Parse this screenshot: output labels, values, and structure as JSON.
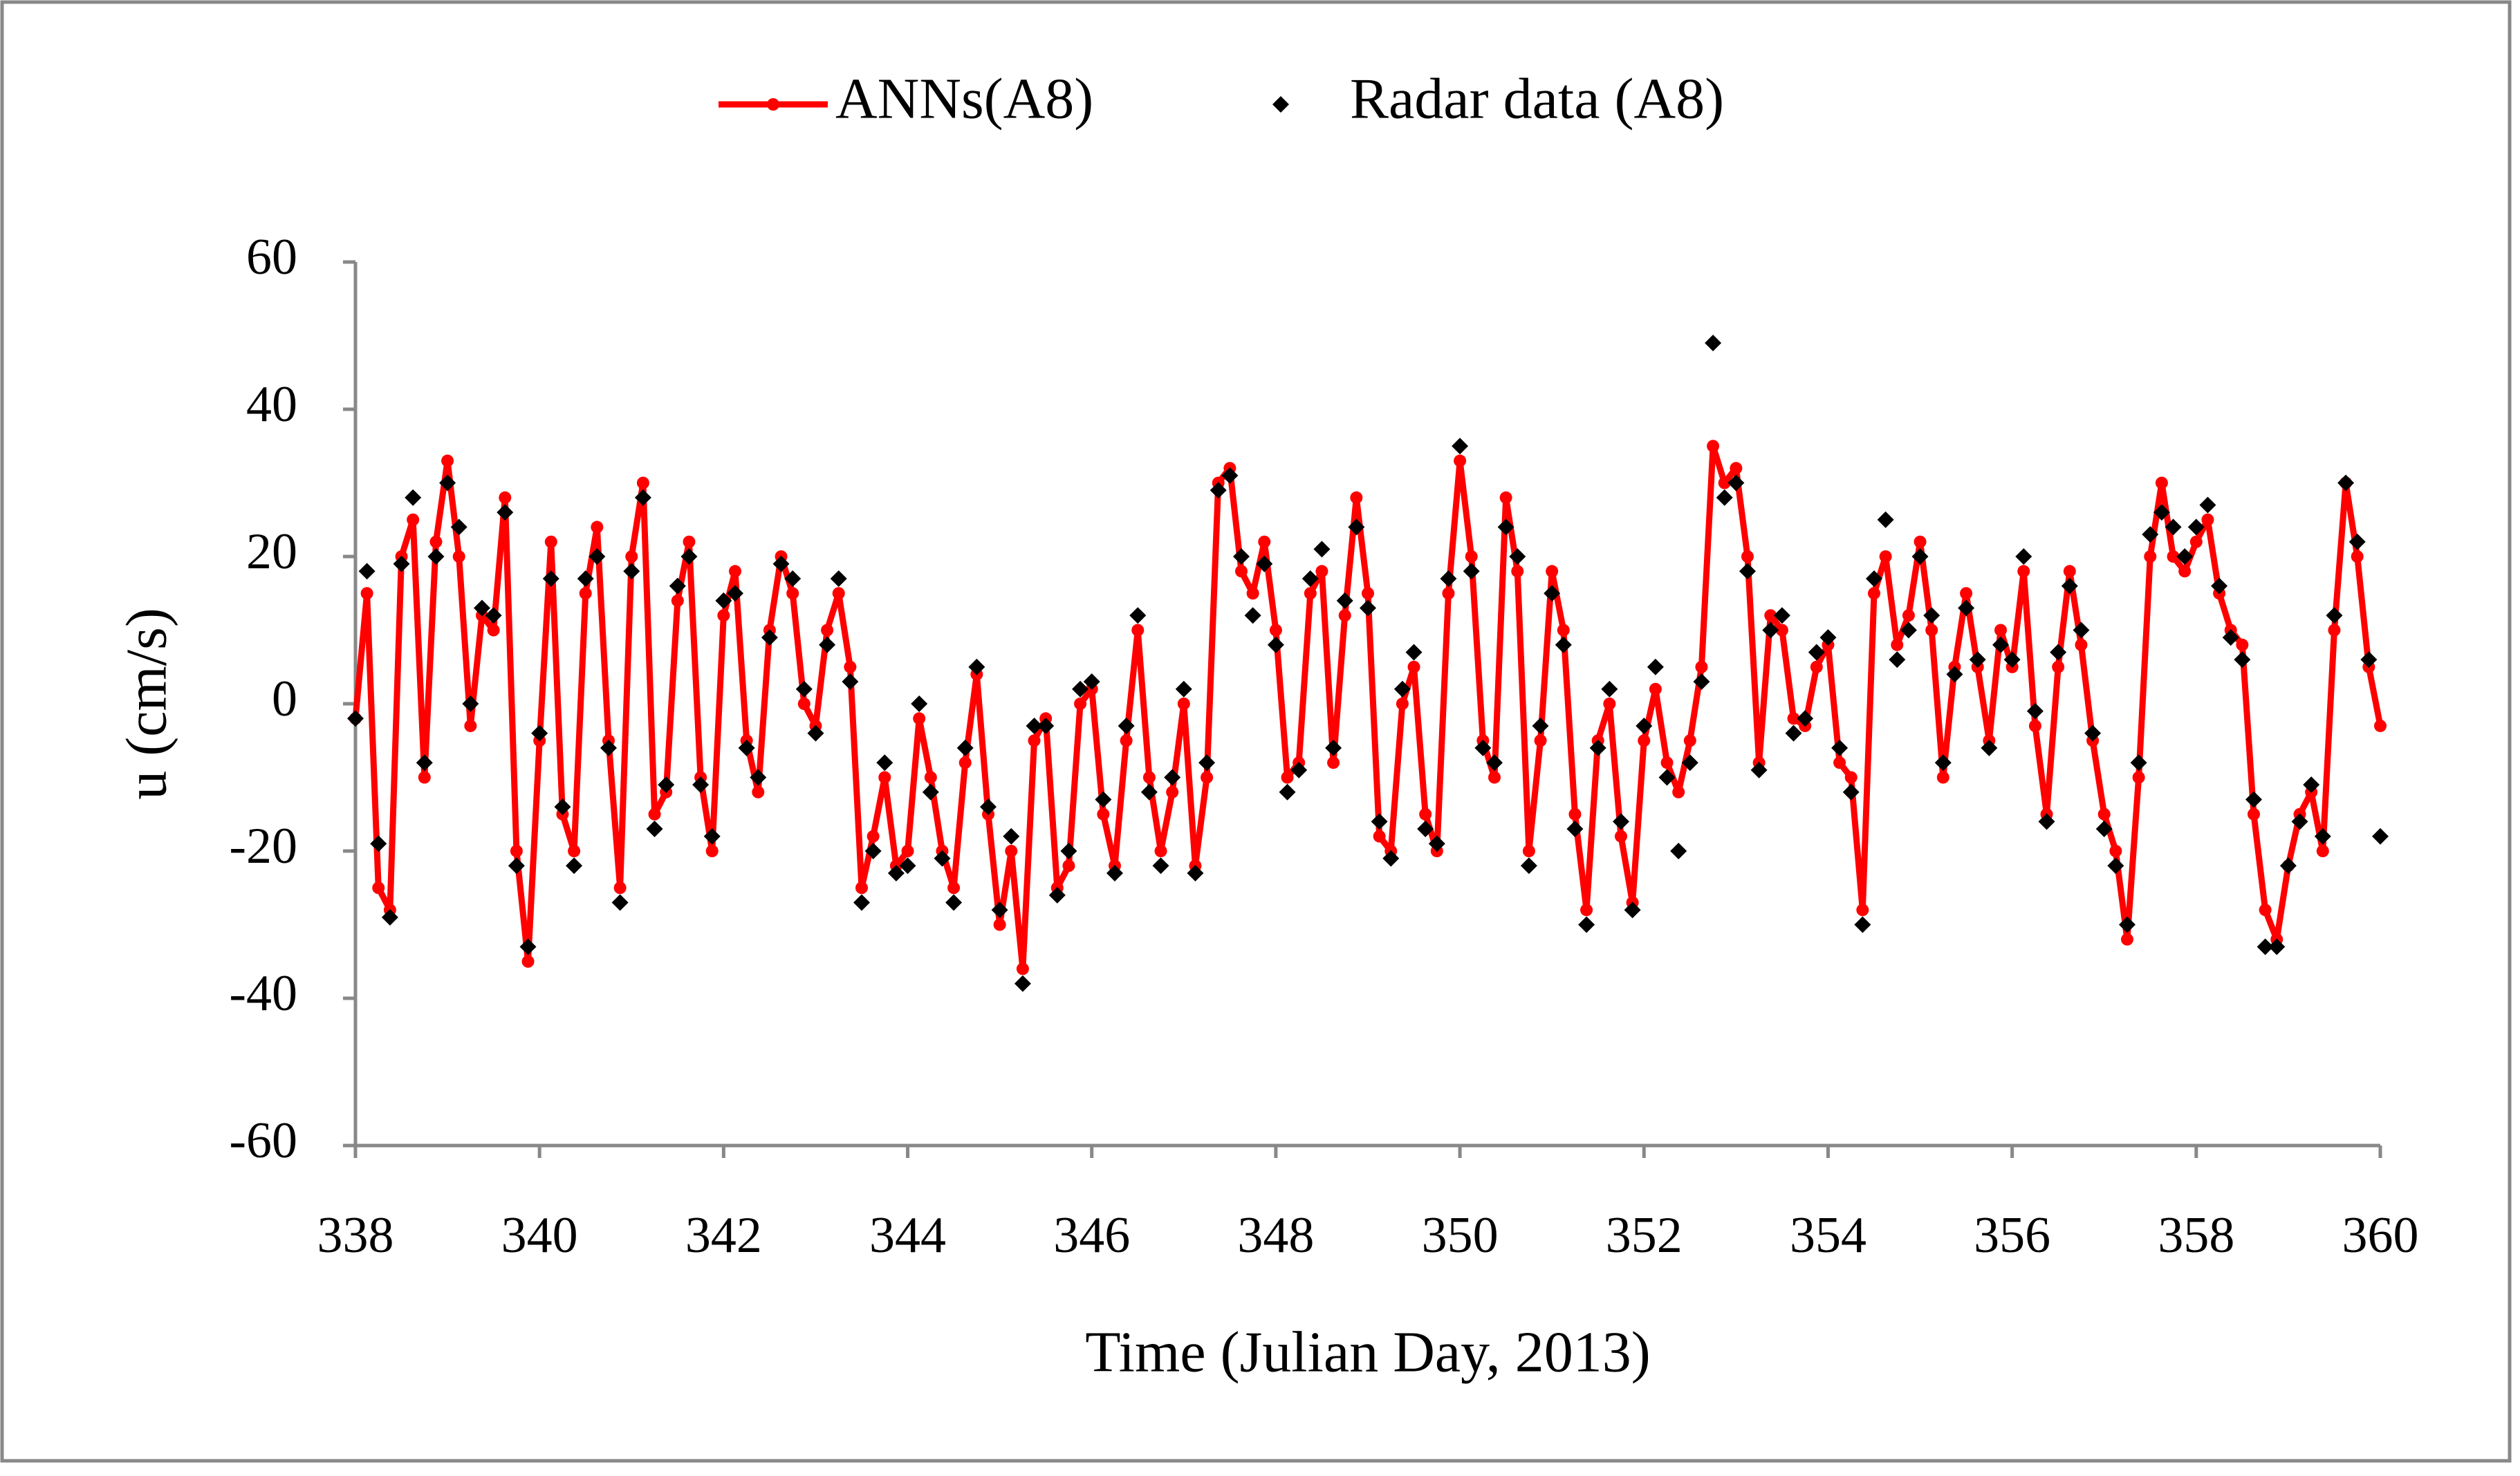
{
  "chart_data": {
    "type": "line",
    "legend": "top",
    "xlabel": "Time (Julian Day, 2013)",
    "ylabel": "u (cm/s)",
    "xlim": [
      338,
      360
    ],
    "xticks": [
      338,
      340,
      342,
      344,
      346,
      348,
      350,
      352,
      354,
      356,
      358,
      360
    ],
    "ylim": [
      -60,
      60
    ],
    "yticks": [
      -60,
      -40,
      -20,
      0,
      20,
      40,
      60
    ],
    "x": [
      338,
      338.125,
      338.25,
      338.375,
      338.5,
      338.625,
      338.75,
      338.875,
      339,
      339.125,
      339.25,
      339.375,
      339.5,
      339.625,
      339.75,
      339.875,
      340,
      340.125,
      340.25,
      340.375,
      340.5,
      340.625,
      340.75,
      340.875,
      341,
      341.125,
      341.25,
      341.375,
      341.5,
      341.625,
      341.75,
      341.875,
      342,
      342.125,
      342.25,
      342.375,
      342.5,
      342.625,
      342.75,
      342.875,
      343,
      343.125,
      343.25,
      343.375,
      343.5,
      343.625,
      343.75,
      343.875,
      344,
      344.125,
      344.25,
      344.375,
      344.5,
      344.625,
      344.75,
      344.875,
      345,
      345.125,
      345.25,
      345.375,
      345.5,
      345.625,
      345.75,
      345.875,
      346,
      346.125,
      346.25,
      346.375,
      346.5,
      346.625,
      346.75,
      346.875,
      347,
      347.125,
      347.25,
      347.375,
      347.5,
      347.625,
      347.75,
      347.875,
      348,
      348.125,
      348.25,
      348.375,
      348.5,
      348.625,
      348.75,
      348.875,
      349,
      349.125,
      349.25,
      349.375,
      349.5,
      349.625,
      349.75,
      349.875,
      350,
      350.125,
      350.25,
      350.375,
      350.5,
      350.625,
      350.75,
      350.875,
      351,
      351.125,
      351.25,
      351.375,
      351.5,
      351.625,
      351.75,
      351.875,
      352,
      352.125,
      352.25,
      352.375,
      352.5,
      352.625,
      352.75,
      352.875,
      353,
      353.125,
      353.25,
      353.375,
      353.5,
      353.625,
      353.75,
      353.875,
      354,
      354.125,
      354.25,
      354.375,
      354.5,
      354.625,
      354.75,
      354.875,
      355,
      355.125,
      355.25,
      355.375,
      355.5,
      355.625,
      355.75,
      355.875,
      356,
      356.125,
      356.25,
      356.375,
      356.5,
      356.625,
      356.75,
      356.875,
      357,
      357.125,
      357.25,
      357.375,
      357.5,
      357.625,
      357.75,
      357.875,
      358,
      358.125,
      358.25,
      358.375,
      358.5,
      358.625,
      358.75,
      358.875,
      359,
      359.125,
      359.25,
      359.375,
      359.5,
      359.625,
      359.75,
      359.875,
      360
    ],
    "series": [
      {
        "name": "ANNs(A8)",
        "color": "#ff0000",
        "marker": "circle",
        "line": true,
        "values": [
          -2,
          15,
          -25,
          -28,
          20,
          25,
          -10,
          22,
          33,
          20,
          -3,
          12,
          10,
          28,
          -20,
          -35,
          -5,
          22,
          -15,
          -20,
          15,
          24,
          -5,
          -25,
          20,
          30,
          -15,
          -12,
          14,
          22,
          -10,
          -20,
          12,
          18,
          -5,
          -12,
          10,
          20,
          15,
          0,
          -3,
          10,
          15,
          5,
          -25,
          -18,
          -10,
          -22,
          -20,
          -2,
          -10,
          -20,
          -25,
          -8,
          4,
          -15,
          -30,
          -20,
          -36,
          -5,
          -2,
          -25,
          -22,
          0,
          2,
          -15,
          -22,
          -5,
          10,
          -10,
          -20,
          -12,
          0,
          -22,
          -10,
          30,
          32,
          18,
          15,
          22,
          10,
          -10,
          -8,
          15,
          18,
          -8,
          12,
          28,
          15,
          -18,
          -20,
          0,
          5,
          -15,
          -20,
          15,
          33,
          20,
          -5,
          -10,
          28,
          18,
          -20,
          -5,
          18,
          10,
          -15,
          -28,
          -5,
          0,
          -18,
          -27,
          -5,
          2,
          -8,
          -12,
          -5,
          5,
          35,
          30,
          32,
          20,
          -8,
          12,
          10,
          -2,
          -3,
          5,
          8,
          -8,
          -10,
          -28,
          15,
          20,
          8,
          12,
          22,
          10,
          -10,
          5,
          15,
          5,
          -5,
          10,
          5,
          18,
          -3,
          -15,
          5,
          18,
          8,
          -5,
          -15,
          -20,
          -32,
          -10,
          20,
          30,
          20,
          18,
          22,
          25,
          15,
          10,
          8,
          -15,
          -28,
          -32,
          -22,
          -15,
          -12,
          -20,
          10,
          30,
          20,
          5,
          -3
        ]
      },
      {
        "name": "Radar data (A8)",
        "color": "#000000",
        "marker": "diamond",
        "line": false,
        "values": [
          -2,
          18,
          -19,
          -29,
          19,
          28,
          -8,
          20,
          30,
          24,
          0,
          13,
          12,
          26,
          -22,
          -33,
          -4,
          17,
          -14,
          -22,
          17,
          20,
          -6,
          -27,
          18,
          28,
          -17,
          -11,
          16,
          20,
          -11,
          -18,
          14,
          15,
          -6,
          -10,
          9,
          19,
          17,
          2,
          -4,
          8,
          17,
          3,
          -27,
          -20,
          -8,
          -23,
          -22,
          0,
          -12,
          -21,
          -27,
          -6,
          5,
          -14,
          -28,
          -18,
          -38,
          -3,
          -3,
          -26,
          -20,
          2,
          3,
          -13,
          -23,
          -3,
          12,
          -12,
          -22,
          -10,
          2,
          -23,
          -8,
          29,
          31,
          20,
          12,
          19,
          8,
          -12,
          -9,
          17,
          21,
          -6,
          14,
          24,
          13,
          -16,
          -21,
          2,
          7,
          -17,
          -19,
          17,
          35,
          18,
          -6,
          -8,
          24,
          20,
          -22,
          -3,
          15,
          8,
          -17,
          -30,
          -6,
          2,
          -16,
          -28,
          -3,
          5,
          -10,
          -20,
          -8,
          3,
          49,
          28,
          30,
          18,
          -9,
          10,
          12,
          -4,
          -2,
          7,
          9,
          -6,
          -12,
          -30,
          17,
          25,
          6,
          10,
          20,
          12,
          -8,
          4,
          13,
          6,
          -6,
          8,
          6,
          20,
          -1,
          -16,
          7,
          16,
          10,
          -4,
          -17,
          -22,
          -30,
          -8,
          23,
          26,
          24,
          20,
          24,
          27,
          16,
          9,
          6,
          -13,
          -33,
          -33,
          -22,
          -16,
          -11,
          -18,
          12,
          30,
          22,
          6,
          -18
        ]
      }
    ]
  }
}
